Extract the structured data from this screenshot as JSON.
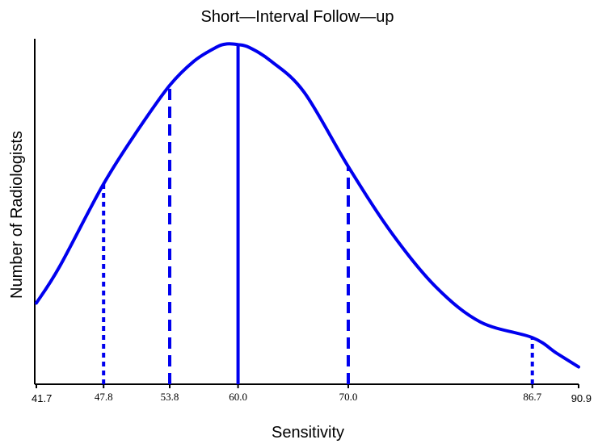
{
  "chart_data": {
    "type": "line",
    "title": "Short—Interval Follow—up",
    "xlabel": "Sensitivity",
    "ylabel": "Number of Radiologists",
    "xlim": [
      41.7,
      90.9
    ],
    "x_ticks": [
      {
        "value": 41.7,
        "label": "41.7"
      },
      {
        "value": 47.8,
        "label": "47.8"
      },
      {
        "value": 53.8,
        "label": "53.8"
      },
      {
        "value": 60.0,
        "label": "60.0"
      },
      {
        "value": 70.0,
        "label": "70.0"
      },
      {
        "value": 86.7,
        "label": "86.7"
      },
      {
        "value": 90.9,
        "label": "90.9"
      }
    ],
    "ylim": [
      0,
      1
    ],
    "curve": {
      "x": [
        41.7,
        43.8,
        47.8,
        51.0,
        53.8,
        56.0,
        58.0,
        59.0,
        60.0,
        61.0,
        63.0,
        66.0,
        70.0,
        74.0,
        78.0,
        82.0,
        86.7,
        88.9,
        90.9
      ],
      "y": [
        0.235,
        0.34,
        0.58,
        0.74,
        0.865,
        0.935,
        0.975,
        0.985,
        0.983,
        0.975,
        0.935,
        0.845,
        0.63,
        0.435,
        0.28,
        0.18,
        0.135,
        0.09,
        0.05
      ]
    },
    "markers": [
      {
        "x": 47.8,
        "style": "dotted"
      },
      {
        "x": 53.8,
        "style": "dashed"
      },
      {
        "x": 60.0,
        "style": "solid"
      },
      {
        "x": 70.0,
        "style": "dashed"
      },
      {
        "x": 86.7,
        "style": "dotted"
      }
    ],
    "line_color": "#0000ee",
    "axis_color": "#000000"
  }
}
